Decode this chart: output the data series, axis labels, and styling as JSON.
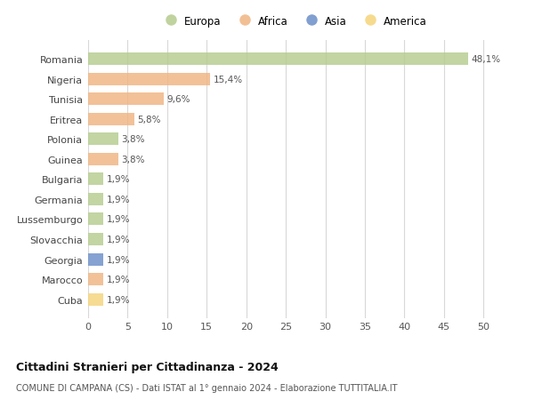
{
  "countries": [
    "Romania",
    "Nigeria",
    "Tunisia",
    "Eritrea",
    "Polonia",
    "Guinea",
    "Bulgaria",
    "Germania",
    "Lussemburgo",
    "Slovacchia",
    "Georgia",
    "Marocco",
    "Cuba"
  ],
  "values": [
    48.1,
    15.4,
    9.6,
    5.8,
    3.8,
    3.8,
    1.9,
    1.9,
    1.9,
    1.9,
    1.9,
    1.9,
    1.9
  ],
  "labels": [
    "48,1%",
    "15,4%",
    "9,6%",
    "5,8%",
    "3,8%",
    "3,8%",
    "1,9%",
    "1,9%",
    "1,9%",
    "1,9%",
    "1,9%",
    "1,9%",
    "1,9%"
  ],
  "colors": [
    "#b5cc8e",
    "#f0b482",
    "#f0b482",
    "#f0b482",
    "#b5cc8e",
    "#f0b482",
    "#b5cc8e",
    "#b5cc8e",
    "#b5cc8e",
    "#b5cc8e",
    "#6b8ec8",
    "#f0b482",
    "#f5d47a"
  ],
  "legend_labels": [
    "Europa",
    "Africa",
    "Asia",
    "America"
  ],
  "legend_colors": [
    "#b5cc8e",
    "#f0b482",
    "#6b8ec8",
    "#f5d47a"
  ],
  "title": "Cittadini Stranieri per Cittadinanza - 2024",
  "subtitle": "COMUNE DI CAMPANA (CS) - Dati ISTAT al 1° gennaio 2024 - Elaborazione TUTTITALIA.IT",
  "xlim": [
    0,
    52
  ],
  "xticks": [
    0,
    5,
    10,
    15,
    20,
    25,
    30,
    35,
    40,
    45,
    50
  ],
  "background_color": "#ffffff",
  "grid_color": "#d8d8d8",
  "bar_height": 0.62,
  "bar_alpha": 0.82
}
